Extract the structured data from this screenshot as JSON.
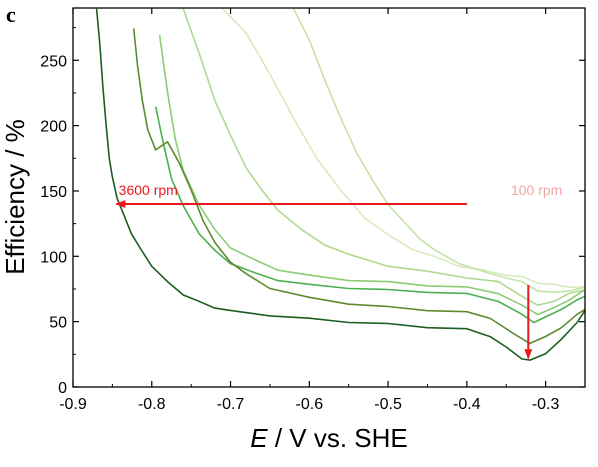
{
  "chart_data": {
    "type": "line",
    "panel_label": "c",
    "xlabel_italic": "E",
    "xlabel_rest": " / V vs. SHE",
    "ylabel": "Efficiency / %",
    "xlim": [
      -0.9,
      -0.25
    ],
    "ylim": [
      0,
      290
    ],
    "xticks": [
      -0.9,
      -0.8,
      -0.7,
      -0.6,
      -0.5,
      -0.4,
      -0.3
    ],
    "yticks": [
      0,
      50,
      100,
      150,
      200,
      250
    ],
    "arrow_high_label": "3600 rpm",
    "arrow_low_label": "100 rpm",
    "annotation_color": "#e8191f",
    "annotation_faded_color": "#f3a6a4",
    "horizontal_arrow": {
      "y": 140,
      "x_from": -0.4,
      "x_to": -0.845
    },
    "vertical_arrow": {
      "x": -0.322,
      "y_from": 78,
      "y_to": 22
    },
    "series": [
      {
        "color": "#d8ebbf",
        "values": [
          {
            "x": -0.71,
            "y": 290
          },
          {
            "x": -0.68,
            "y": 270
          },
          {
            "x": -0.65,
            "y": 240
          },
          {
            "x": -0.62,
            "y": 205
          },
          {
            "x": -0.59,
            "y": 175
          },
          {
            "x": -0.56,
            "y": 150
          },
          {
            "x": -0.53,
            "y": 130
          },
          {
            "x": -0.5,
            "y": 116
          },
          {
            "x": -0.47,
            "y": 106
          },
          {
            "x": -0.44,
            "y": 99
          },
          {
            "x": -0.41,
            "y": 93
          },
          {
            "x": -0.38,
            "y": 89
          },
          {
            "x": -0.35,
            "y": 86
          },
          {
            "x": -0.33,
            "y": 84
          },
          {
            "x": -0.31,
            "y": 80
          },
          {
            "x": -0.29,
            "y": 78
          },
          {
            "x": -0.27,
            "y": 77
          },
          {
            "x": -0.25,
            "y": 76
          }
        ]
      },
      {
        "color": "#c4e3a4",
        "values": [
          {
            "x": -0.62,
            "y": 290
          },
          {
            "x": -0.6,
            "y": 265
          },
          {
            "x": -0.58,
            "y": 235
          },
          {
            "x": -0.56,
            "y": 205
          },
          {
            "x": -0.54,
            "y": 180
          },
          {
            "x": -0.52,
            "y": 158
          },
          {
            "x": -0.5,
            "y": 140
          },
          {
            "x": -0.48,
            "y": 126
          },
          {
            "x": -0.46,
            "y": 114
          },
          {
            "x": -0.44,
            "y": 104
          },
          {
            "x": -0.41,
            "y": 95
          },
          {
            "x": -0.38,
            "y": 88
          },
          {
            "x": -0.35,
            "y": 84
          },
          {
            "x": -0.33,
            "y": 80
          },
          {
            "x": -0.31,
            "y": 74
          },
          {
            "x": -0.29,
            "y": 72
          },
          {
            "x": -0.27,
            "y": 74
          },
          {
            "x": -0.25,
            "y": 76
          }
        ]
      },
      {
        "color": "#b0d98d",
        "values": [
          {
            "x": -0.76,
            "y": 290
          },
          {
            "x": -0.74,
            "y": 255
          },
          {
            "x": -0.72,
            "y": 220
          },
          {
            "x": -0.7,
            "y": 192
          },
          {
            "x": -0.68,
            "y": 168
          },
          {
            "x": -0.66,
            "y": 150
          },
          {
            "x": -0.64,
            "y": 136
          },
          {
            "x": -0.61,
            "y": 120
          },
          {
            "x": -0.58,
            "y": 109
          },
          {
            "x": -0.55,
            "y": 101
          },
          {
            "x": -0.5,
            "y": 93
          },
          {
            "x": -0.45,
            "y": 88
          },
          {
            "x": -0.4,
            "y": 84
          },
          {
            "x": -0.36,
            "y": 80
          },
          {
            "x": -0.33,
            "y": 70
          },
          {
            "x": -0.31,
            "y": 62
          },
          {
            "x": -0.29,
            "y": 66
          },
          {
            "x": -0.27,
            "y": 71
          },
          {
            "x": -0.25,
            "y": 75
          }
        ]
      },
      {
        "color": "#8ccc74",
        "values": [
          {
            "x": -0.79,
            "y": 270
          },
          {
            "x": -0.78,
            "y": 225
          },
          {
            "x": -0.77,
            "y": 190
          },
          {
            "x": -0.76,
            "y": 165
          },
          {
            "x": -0.74,
            "y": 140
          },
          {
            "x": -0.72,
            "y": 120
          },
          {
            "x": -0.7,
            "y": 107
          },
          {
            "x": -0.67,
            "y": 97
          },
          {
            "x": -0.64,
            "y": 90
          },
          {
            "x": -0.6,
            "y": 85
          },
          {
            "x": -0.55,
            "y": 82
          },
          {
            "x": -0.5,
            "y": 80
          },
          {
            "x": -0.45,
            "y": 78
          },
          {
            "x": -0.4,
            "y": 76
          },
          {
            "x": -0.36,
            "y": 72
          },
          {
            "x": -0.33,
            "y": 62
          },
          {
            "x": -0.31,
            "y": 56
          },
          {
            "x": -0.29,
            "y": 60
          },
          {
            "x": -0.27,
            "y": 67
          },
          {
            "x": -0.25,
            "y": 74
          }
        ]
      },
      {
        "color": "#4caf50",
        "values": [
          {
            "x": -0.795,
            "y": 215
          },
          {
            "x": -0.785,
            "y": 185
          },
          {
            "x": -0.775,
            "y": 160
          },
          {
            "x": -0.76,
            "y": 138
          },
          {
            "x": -0.74,
            "y": 118
          },
          {
            "x": -0.72,
            "y": 104
          },
          {
            "x": -0.7,
            "y": 95
          },
          {
            "x": -0.67,
            "y": 87
          },
          {
            "x": -0.64,
            "y": 82
          },
          {
            "x": -0.6,
            "y": 78
          },
          {
            "x": -0.55,
            "y": 76
          },
          {
            "x": -0.5,
            "y": 74
          },
          {
            "x": -0.45,
            "y": 73
          },
          {
            "x": -0.4,
            "y": 71
          },
          {
            "x": -0.36,
            "y": 66
          },
          {
            "x": -0.33,
            "y": 55
          },
          {
            "x": -0.315,
            "y": 50
          },
          {
            "x": -0.3,
            "y": 53
          },
          {
            "x": -0.28,
            "y": 60
          },
          {
            "x": -0.26,
            "y": 66
          },
          {
            "x": -0.25,
            "y": 70
          }
        ]
      },
      {
        "color": "#5d8a2e",
        "values": [
          {
            "x": -0.823,
            "y": 275
          },
          {
            "x": -0.818,
            "y": 245
          },
          {
            "x": -0.812,
            "y": 220
          },
          {
            "x": -0.805,
            "y": 196
          },
          {
            "x": -0.795,
            "y": 182
          },
          {
            "x": -0.78,
            "y": 187
          },
          {
            "x": -0.765,
            "y": 172
          },
          {
            "x": -0.75,
            "y": 150
          },
          {
            "x": -0.735,
            "y": 128
          },
          {
            "x": -0.72,
            "y": 110
          },
          {
            "x": -0.7,
            "y": 96
          },
          {
            "x": -0.68,
            "y": 86
          },
          {
            "x": -0.65,
            "y": 76
          },
          {
            "x": -0.6,
            "y": 68
          },
          {
            "x": -0.55,
            "y": 64
          },
          {
            "x": -0.5,
            "y": 61
          },
          {
            "x": -0.45,
            "y": 59
          },
          {
            "x": -0.4,
            "y": 57
          },
          {
            "x": -0.37,
            "y": 53
          },
          {
            "x": -0.34,
            "y": 40
          },
          {
            "x": -0.32,
            "y": 34
          },
          {
            "x": -0.3,
            "y": 38
          },
          {
            "x": -0.28,
            "y": 46
          },
          {
            "x": -0.26,
            "y": 55
          },
          {
            "x": -0.25,
            "y": 60
          }
        ]
      },
      {
        "color": "#1b5e20",
        "values": [
          {
            "x": -0.87,
            "y": 290
          },
          {
            "x": -0.866,
            "y": 262
          },
          {
            "x": -0.862,
            "y": 230
          },
          {
            "x": -0.858,
            "y": 200
          },
          {
            "x": -0.854,
            "y": 176
          },
          {
            "x": -0.85,
            "y": 160
          },
          {
            "x": -0.844,
            "y": 145
          },
          {
            "x": -0.836,
            "y": 132
          },
          {
            "x": -0.826,
            "y": 118
          },
          {
            "x": -0.814,
            "y": 105
          },
          {
            "x": -0.8,
            "y": 93
          },
          {
            "x": -0.78,
            "y": 80
          },
          {
            "x": -0.76,
            "y": 71
          },
          {
            "x": -0.74,
            "y": 65
          },
          {
            "x": -0.72,
            "y": 61
          },
          {
            "x": -0.7,
            "y": 58
          },
          {
            "x": -0.65,
            "y": 55
          },
          {
            "x": -0.6,
            "y": 52
          },
          {
            "x": -0.55,
            "y": 50
          },
          {
            "x": -0.5,
            "y": 48
          },
          {
            "x": -0.45,
            "y": 46
          },
          {
            "x": -0.4,
            "y": 44
          },
          {
            "x": -0.37,
            "y": 39
          },
          {
            "x": -0.35,
            "y": 30
          },
          {
            "x": -0.33,
            "y": 22
          },
          {
            "x": -0.32,
            "y": 20
          },
          {
            "x": -0.3,
            "y": 26
          },
          {
            "x": -0.28,
            "y": 36
          },
          {
            "x": -0.26,
            "y": 50
          },
          {
            "x": -0.25,
            "y": 58
          }
        ]
      }
    ]
  }
}
